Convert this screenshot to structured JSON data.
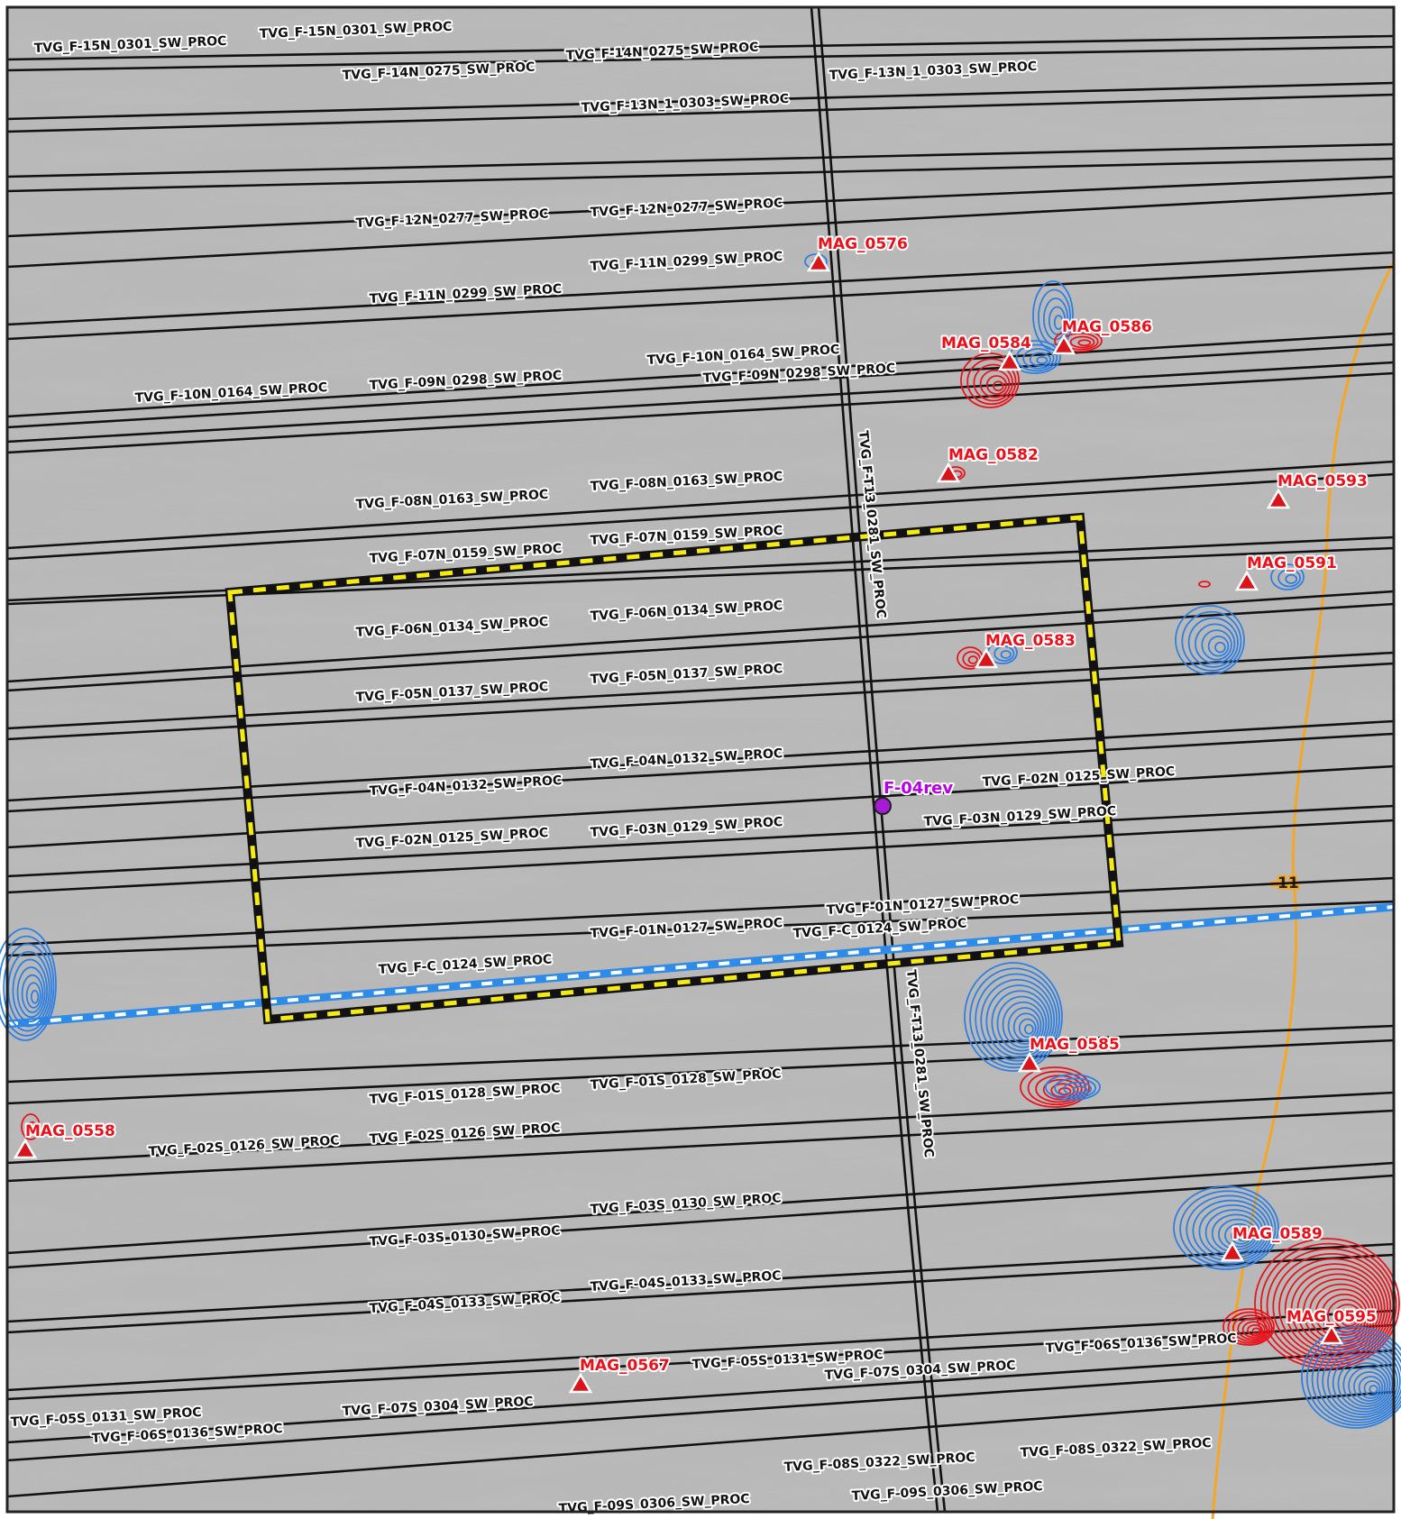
{
  "survey_lines": [
    {
      "label": "TVG_F-15N_0301_SW_PROC"
    },
    {
      "label": "TVG_F-15N_0301_SW_PROC"
    },
    {
      "label": "TVG_F-14N_0275_SW_PROC"
    },
    {
      "label": "TVG_F-14N_0275_SW_PROC"
    },
    {
      "label": "TVG_F-13N_1_0303_SW_PROC"
    },
    {
      "label": "TVG_F-13N_1_0303_SW_PROC"
    },
    {
      "label": "TVG_F-12N_0277_SW_PROC"
    },
    {
      "label": "TVG_F-12N_0277_SW_PROC"
    },
    {
      "label": "TVG_F-11N_0299_SW_PROC"
    },
    {
      "label": "TVG_F-11N_0299_SW_PROC"
    },
    {
      "label": "TVG_F-10N_0164_SW_PROC"
    },
    {
      "label": "TVG_F-10N_0164_SW_PROC"
    },
    {
      "label": "TVG_F-09N_0298_SW_PROC"
    },
    {
      "label": "TVG_F-09N_0298_SW_PROC"
    },
    {
      "label": "TVG_F-08N_0163_SW_PROC"
    },
    {
      "label": "TVG_F-08N_0163_SW_PROC"
    },
    {
      "label": "TVG_F-07N_0159_SW_PROC"
    },
    {
      "label": "TVG_F-07N_0159_SW_PROC"
    },
    {
      "label": "TVG_F-06N_0134_SW_PROC"
    },
    {
      "label": "TVG_F-06N_0134_SW_PROC"
    },
    {
      "label": "TVG_F-05N_0137_SW_PROC"
    },
    {
      "label": "TVG_F-05N_0137_SW_PROC"
    },
    {
      "label": "TVG_F-04N_0132_SW_PROC"
    },
    {
      "label": "TVG_F-04N_0132_SW_PROC"
    },
    {
      "label": "TVG_F-02N_0125_SW_PROC"
    },
    {
      "label": "TVG_F-02N_0125_SW_PROC"
    },
    {
      "label": "TVG_F-03N_0129_SW_PROC"
    },
    {
      "label": "TVG_F-03N_0129_SW_PROC"
    },
    {
      "label": "TVG_F-01N_0127_SW_PROC"
    },
    {
      "label": "TVG_F-01N_0127_SW_PROC"
    },
    {
      "label": "TVG_F-C_0124_SW_PROC"
    },
    {
      "label": "TVG_F-C_0124_SW_PROC"
    },
    {
      "label": "TVG_F-01S_0128_SW_PROC"
    },
    {
      "label": "TVG_F-01S_0128_SW_PROC"
    },
    {
      "label": "TVG_F-02S_0126_SW_PROC"
    },
    {
      "label": "TVG_F-02S_0126_SW_PROC"
    },
    {
      "label": "TVG_F-03S_0130_SW_PROC"
    },
    {
      "label": "TVG_F-03S_0130_SW_PROC"
    },
    {
      "label": "TVG_F-04S_0133_SW_PROC"
    },
    {
      "label": "TVG_F-04S_0133_SW_PROC"
    },
    {
      "label": "TVG_F-05S_0131_SW_PROC"
    },
    {
      "label": "TVG_F-05S_0131_SW_PROC"
    },
    {
      "label": "TVG_F-06S_0136_SW_PROC"
    },
    {
      "label": "TVG_F-06S_0136_SW_PROC"
    },
    {
      "label": "TVG_F-07S_0304_SW_PROC"
    },
    {
      "label": "TVG_F-07S_0304_SW_PROC"
    },
    {
      "label": "TVG_F-08S_0322_SW_PROC"
    },
    {
      "label": "TVG_F-08S_0322_SW_PROC"
    },
    {
      "label": "TVG_F-09S_0306_SW_PROC"
    },
    {
      "label": "TVG_F-09S_0306_SW_PROC"
    },
    {
      "label": "TVG_F-T13_0281_SW_PROC"
    },
    {
      "label": "TVG_F-T13_0281_SW_PROC"
    }
  ],
  "mag_targets": [
    {
      "label": "MAG_0576"
    },
    {
      "label": "MAG_0584"
    },
    {
      "label": "MAG_0586"
    },
    {
      "label": "MAG_0582"
    },
    {
      "label": "MAG_0593"
    },
    {
      "label": "MAG_0591"
    },
    {
      "label": "MAG_0583"
    },
    {
      "label": "MAG_0585"
    },
    {
      "label": "MAG_0558"
    },
    {
      "label": "MAG_0589"
    },
    {
      "label": "MAG_0595"
    },
    {
      "label": "MAG_0567"
    }
  ],
  "well": {
    "label": "F-04rev"
  },
  "contour": {
    "label": "-11"
  },
  "colors": {
    "survey_line": "#111111",
    "mag_target": "#d9141b",
    "positive_anomaly": "#e8141c",
    "negative_anomaly": "#2f7fe0",
    "contour": "#f5a623",
    "well": "#a51bd6",
    "site_box": "#f5ea12",
    "cable": "#2f8be8"
  }
}
